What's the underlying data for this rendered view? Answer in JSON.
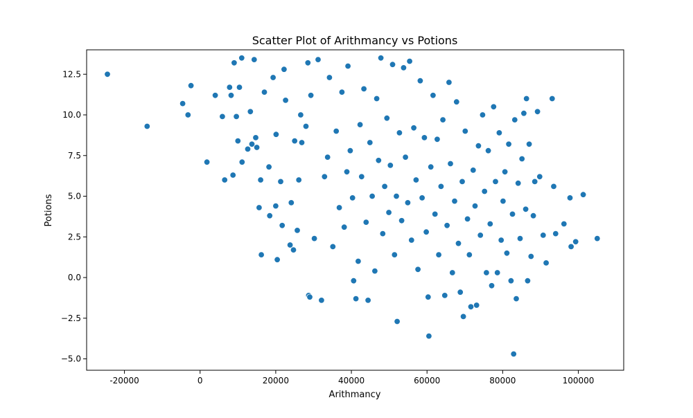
{
  "chart_data": {
    "type": "scatter",
    "title": "Scatter Plot of Arithmancy vs Potions",
    "xlabel": "Arithmancy",
    "ylabel": "Potions",
    "xlim": [
      -30000,
      112000
    ],
    "ylim": [
      -5.7,
      14.0
    ],
    "xticks": [
      -20000,
      0,
      20000,
      40000,
      60000,
      80000,
      100000
    ],
    "yticks": [
      -5.0,
      -2.5,
      0.0,
      2.5,
      5.0,
      7.5,
      10.0,
      12.5
    ],
    "grid": false,
    "legend": "none",
    "marker_color": "#1f77b4",
    "points": [
      [
        -24500,
        12.5
      ],
      [
        -14000,
        9.3
      ],
      [
        -4600,
        10.7
      ],
      [
        -3200,
        10.0
      ],
      [
        -2400,
        11.8
      ],
      [
        1800,
        7.1
      ],
      [
        4000,
        11.2
      ],
      [
        5900,
        9.9
      ],
      [
        6500,
        6.0
      ],
      [
        7800,
        11.7
      ],
      [
        8200,
        11.2
      ],
      [
        8700,
        6.3
      ],
      [
        9000,
        13.2
      ],
      [
        9600,
        9.9
      ],
      [
        10000,
        8.4
      ],
      [
        10400,
        11.7
      ],
      [
        11000,
        13.5
      ],
      [
        11100,
        7.1
      ],
      [
        12600,
        7.9
      ],
      [
        13300,
        10.2
      ],
      [
        13700,
        8.2
      ],
      [
        14300,
        13.4
      ],
      [
        14700,
        8.6
      ],
      [
        15000,
        8.0
      ],
      [
        15600,
        4.3
      ],
      [
        16000,
        6.0
      ],
      [
        16200,
        1.4
      ],
      [
        17000,
        11.4
      ],
      [
        18200,
        6.8
      ],
      [
        18400,
        3.8
      ],
      [
        19300,
        12.3
      ],
      [
        20000,
        4.4
      ],
      [
        20100,
        8.8
      ],
      [
        20400,
        1.1
      ],
      [
        21300,
        5.9
      ],
      [
        21700,
        3.2
      ],
      [
        22200,
        12.8
      ],
      [
        22600,
        10.9
      ],
      [
        23800,
        2.0
      ],
      [
        24100,
        4.6
      ],
      [
        24700,
        1.7
      ],
      [
        25000,
        8.4
      ],
      [
        25700,
        2.9
      ],
      [
        26100,
        6.0
      ],
      [
        26600,
        10.0
      ],
      [
        26900,
        8.3
      ],
      [
        28000,
        9.3
      ],
      [
        28500,
        13.2
      ],
      [
        28700,
        -1.1
      ],
      [
        29000,
        -1.2
      ],
      [
        29300,
        11.2
      ],
      [
        30200,
        2.4
      ],
      [
        31200,
        13.4
      ],
      [
        32100,
        -1.4
      ],
      [
        32900,
        6.2
      ],
      [
        33700,
        7.4
      ],
      [
        34200,
        12.3
      ],
      [
        35100,
        1.9
      ],
      [
        36000,
        9.0
      ],
      [
        36800,
        4.3
      ],
      [
        37500,
        11.4
      ],
      [
        38100,
        3.1
      ],
      [
        38800,
        6.5
      ],
      [
        39100,
        13.0
      ],
      [
        39700,
        7.8
      ],
      [
        40300,
        4.9
      ],
      [
        40600,
        -0.2
      ],
      [
        41200,
        -1.3
      ],
      [
        41800,
        1.0
      ],
      [
        42300,
        9.4
      ],
      [
        42700,
        6.2
      ],
      [
        43300,
        11.6
      ],
      [
        43900,
        3.4
      ],
      [
        44400,
        -1.4
      ],
      [
        44900,
        8.3
      ],
      [
        45500,
        5.0
      ],
      [
        46200,
        0.4
      ],
      [
        46700,
        11.0
      ],
      [
        47200,
        7.2
      ],
      [
        47800,
        13.5
      ],
      [
        48300,
        2.7
      ],
      [
        48800,
        5.6
      ],
      [
        49400,
        9.8
      ],
      [
        49900,
        4.0
      ],
      [
        50300,
        6.9
      ],
      [
        50900,
        13.1
      ],
      [
        51400,
        1.4
      ],
      [
        51900,
        5.0
      ],
      [
        52100,
        -2.7
      ],
      [
        52700,
        8.9
      ],
      [
        53300,
        3.5
      ],
      [
        53800,
        12.9
      ],
      [
        54300,
        7.4
      ],
      [
        54900,
        4.6
      ],
      [
        55400,
        13.3
      ],
      [
        55900,
        2.3
      ],
      [
        56500,
        9.2
      ],
      [
        57100,
        6.0
      ],
      [
        57600,
        0.5
      ],
      [
        58200,
        12.1
      ],
      [
        58700,
        4.9
      ],
      [
        59300,
        8.6
      ],
      [
        59800,
        2.8
      ],
      [
        60300,
        -1.2
      ],
      [
        60500,
        -3.6
      ],
      [
        61000,
        6.8
      ],
      [
        61600,
        11.2
      ],
      [
        62100,
        3.9
      ],
      [
        62700,
        8.5
      ],
      [
        63100,
        1.4
      ],
      [
        63700,
        5.6
      ],
      [
        64200,
        9.7
      ],
      [
        64700,
        -1.1
      ],
      [
        65300,
        3.2
      ],
      [
        65800,
        12.0
      ],
      [
        66200,
        7.0
      ],
      [
        66700,
        0.3
      ],
      [
        67300,
        4.7
      ],
      [
        67800,
        10.8
      ],
      [
        68300,
        2.1
      ],
      [
        68800,
        -0.9
      ],
      [
        69300,
        5.9
      ],
      [
        69600,
        -2.4
      ],
      [
        70100,
        9.0
      ],
      [
        70700,
        3.6
      ],
      [
        71200,
        1.4
      ],
      [
        71600,
        -1.8
      ],
      [
        72200,
        6.6
      ],
      [
        72700,
        4.4
      ],
      [
        73100,
        -1.7
      ],
      [
        73600,
        8.1
      ],
      [
        74100,
        2.6
      ],
      [
        74700,
        10.0
      ],
      [
        75200,
        5.3
      ],
      [
        75700,
        0.3
      ],
      [
        76200,
        7.8
      ],
      [
        76700,
        3.3
      ],
      [
        77100,
        -0.5
      ],
      [
        77600,
        10.5
      ],
      [
        78100,
        5.9
      ],
      [
        78600,
        0.3
      ],
      [
        79100,
        8.9
      ],
      [
        79600,
        2.3
      ],
      [
        80100,
        4.7
      ],
      [
        80600,
        6.5
      ],
      [
        81100,
        1.5
      ],
      [
        81600,
        8.2
      ],
      [
        82200,
        -0.2
      ],
      [
        82600,
        3.9
      ],
      [
        82900,
        -4.7
      ],
      [
        83200,
        9.7
      ],
      [
        83600,
        -1.3
      ],
      [
        84100,
        5.8
      ],
      [
        84600,
        2.4
      ],
      [
        85100,
        7.3
      ],
      [
        85600,
        10.1
      ],
      [
        86100,
        4.2
      ],
      [
        86300,
        11.0
      ],
      [
        86600,
        -0.2
      ],
      [
        87000,
        8.2
      ],
      [
        87500,
        1.3
      ],
      [
        88100,
        3.8
      ],
      [
        88500,
        5.9
      ],
      [
        89200,
        10.2
      ],
      [
        89800,
        6.2
      ],
      [
        90700,
        2.6
      ],
      [
        91500,
        0.9
      ],
      [
        93100,
        11.0
      ],
      [
        93500,
        5.6
      ],
      [
        94000,
        2.7
      ],
      [
        96200,
        3.3
      ],
      [
        97800,
        4.9
      ],
      [
        98100,
        1.9
      ],
      [
        99300,
        2.2
      ],
      [
        101300,
        5.1
      ],
      [
        105000,
        2.4
      ]
    ]
  }
}
